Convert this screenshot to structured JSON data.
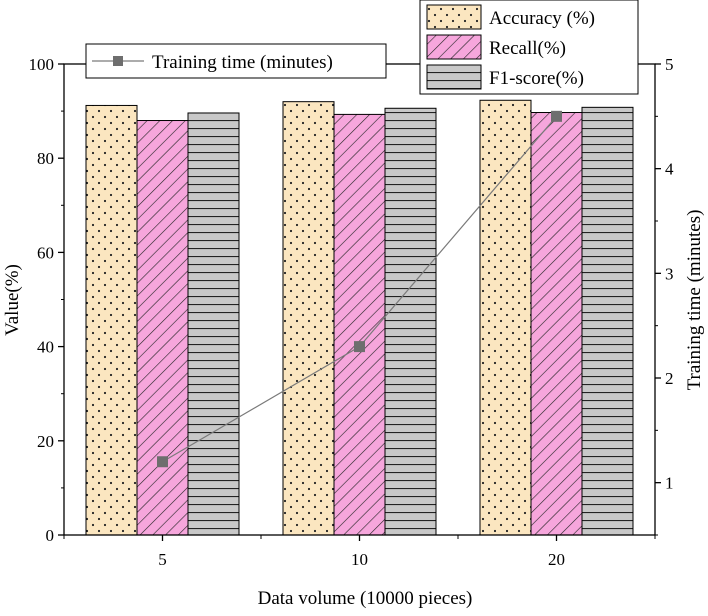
{
  "chart_data": {
    "type": "bar",
    "xlabel": "Data volume (10000 pieces)",
    "ylabel": "Value(%)",
    "y2label": "Training time (minutes)",
    "categories": [
      "5",
      "10",
      "20"
    ],
    "ylim": [
      0,
      100
    ],
    "yticks": [
      0,
      20,
      40,
      60,
      80,
      100
    ],
    "y2lim": [
      0.5,
      5
    ],
    "y2ticks": [
      1,
      2,
      3,
      4,
      5
    ],
    "series": [
      {
        "name": "Accuracy (%)",
        "values": [
          91.2,
          92.0,
          92.3
        ],
        "color": "#fbe6c0",
        "pattern": "dots"
      },
      {
        "name": "Recall(%)",
        "values": [
          88.0,
          89.3,
          89.7
        ],
        "color": "#f6a6dc",
        "pattern": "diagonal"
      },
      {
        "name": "F1-score(%)",
        "values": [
          89.6,
          90.6,
          90.8
        ],
        "color": "#c8c8c8",
        "pattern": "horizontal"
      }
    ],
    "line_series": {
      "name": "Training time (minutes)",
      "values": [
        1.2,
        2.3,
        4.5
      ],
      "axis": "right",
      "color": "#7a7a7a",
      "marker": "square"
    },
    "legend_bars_placement": "top-right",
    "legend_line_placement": "top-center",
    "grid": false
  }
}
